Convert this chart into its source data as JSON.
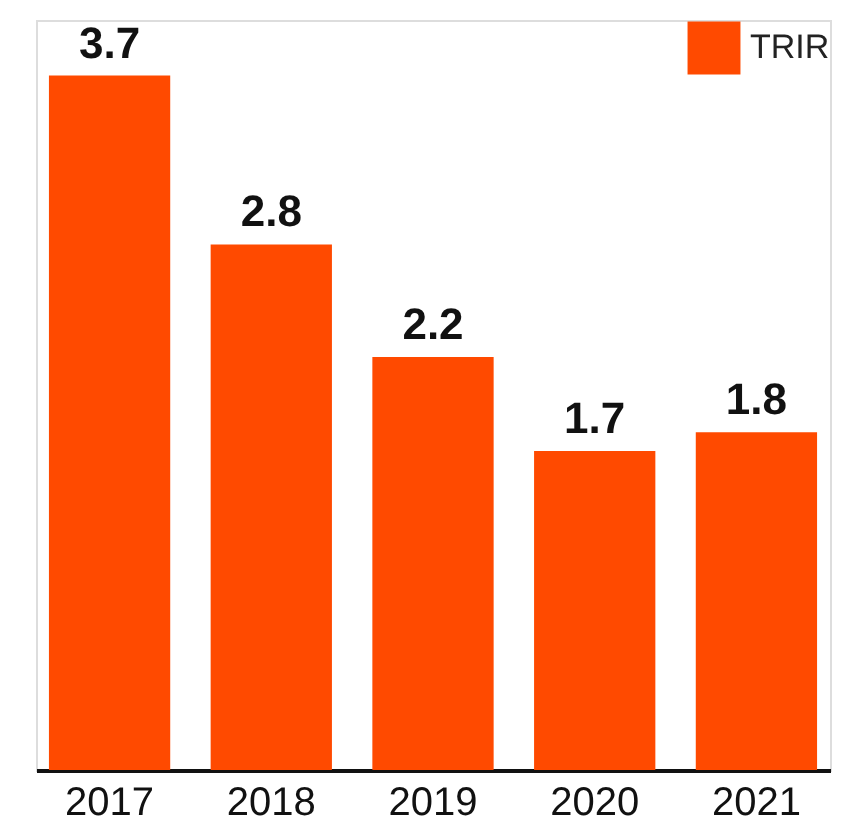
{
  "chart_data": {
    "type": "bar",
    "categories": [
      "2017",
      "2018",
      "2019",
      "2020",
      "2021"
    ],
    "series": [
      {
        "name": "TRIR",
        "color": "#ff4a00",
        "values": [
          3.7,
          2.8,
          2.2,
          1.7,
          1.8
        ]
      }
    ],
    "data_labels": true,
    "legend": "top right",
    "grid": false
  }
}
